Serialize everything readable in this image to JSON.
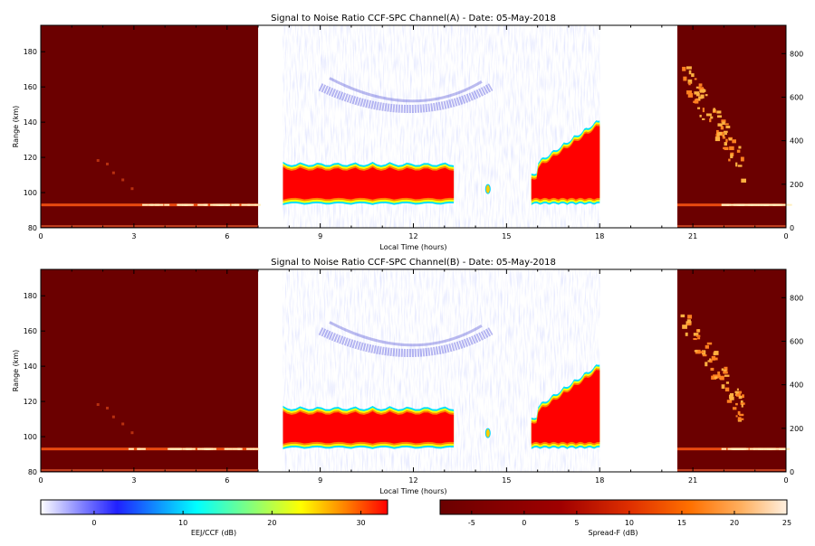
{
  "chart_data": [
    {
      "type": "heatmap",
      "title": "Signal to Noise Ratio CCF-SPC Channel(A) - Date: 05-May-2018",
      "xlabel": "Local Time (hours)",
      "ylabel": "Range (km)",
      "xlim": [
        0,
        24
      ],
      "ylim": [
        80,
        195
      ],
      "xticks": [
        "0",
        "3",
        "6",
        "9",
        "12",
        "15",
        "18",
        "21",
        "0"
      ],
      "yticks": [
        "80",
        "100",
        "120",
        "140",
        "160",
        "180"
      ],
      "right_yticks": [
        "0",
        "200",
        "400",
        "600",
        "800"
      ],
      "right_ylim": [
        0,
        930
      ],
      "spreadf_windows_hours": [
        [
          0,
          7
        ],
        [
          20.5,
          24
        ]
      ],
      "eej_window_hours": [
        7.8,
        18
      ],
      "eej_echo_band": {
        "range_km": [
          96,
          116
        ],
        "hours": [
          [
            7.8,
            13.3
          ],
          [
            15.8,
            18
          ]
        ],
        "peak_snr_db": 32
      },
      "eej_top_layer_km": [
        140,
        160
      ],
      "spreadf_baseline_km": 93
    },
    {
      "type": "heatmap",
      "title": "Signal to Noise Ratio CCF-SPC Channel(B) - Date: 05-May-2018",
      "xlabel": "Local Time (hours)",
      "ylabel": "Range (km)",
      "xlim": [
        0,
        24
      ],
      "ylim": [
        80,
        195
      ],
      "xticks": [
        "0",
        "3",
        "6",
        "9",
        "12",
        "15",
        "18",
        "21",
        "0"
      ],
      "yticks": [
        "80",
        "100",
        "120",
        "140",
        "160",
        "180"
      ],
      "right_yticks": [
        "0",
        "200",
        "400",
        "600",
        "800"
      ],
      "right_ylim": [
        0,
        930
      ],
      "spreadf_windows_hours": [
        [
          0,
          7
        ],
        [
          20.5,
          24
        ]
      ],
      "eej_window_hours": [
        7.8,
        18
      ],
      "eej_echo_band": {
        "range_km": [
          96,
          116
        ],
        "hours": [
          [
            7.8,
            13.3
          ],
          [
            15.8,
            18
          ]
        ],
        "peak_snr_db": 32
      },
      "eej_top_layer_km": [
        140,
        160
      ],
      "spreadf_baseline_km": 93
    }
  ],
  "colorbars": [
    {
      "label": "EEJ/CCF (dB)",
      "ticks": [
        "0",
        "10",
        "20",
        "30"
      ],
      "range": [
        -6,
        33
      ],
      "colors": [
        "#ffffff",
        "#8080ff",
        "#2020ff",
        "#00ffff",
        "#80ff80",
        "#ffff00",
        "#ff8000",
        "#ff0000"
      ]
    },
    {
      "label": "Spread-F (dB)",
      "ticks": [
        "-5",
        "0",
        "5",
        "10",
        "15",
        "20",
        "25"
      ],
      "range": [
        -8,
        25
      ],
      "colors": [
        "#6b0000",
        "#a00000",
        "#e03000",
        "#ff7000",
        "#ffb060",
        "#fff0e0"
      ]
    }
  ]
}
